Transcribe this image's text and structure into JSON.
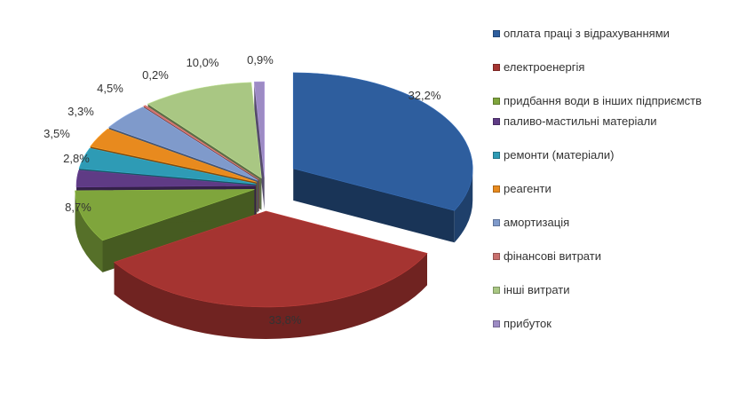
{
  "chart_data": {
    "type": "pie",
    "style": "3d-exploded",
    "title": "",
    "legend_position": "right",
    "slices": [
      {
        "label": "оплата праці з відрахуваннями",
        "value": 32.2,
        "value_label": "32,2%",
        "color": "#2E5E9E"
      },
      {
        "label": "електроенергія",
        "value": 33.8,
        "value_label": "33,8%",
        "color": "#A53431"
      },
      {
        "label": "придбання води в інших підприємств",
        "value": 8.7,
        "value_label": "8,7%",
        "color": "#7FA53C"
      },
      {
        "label": "паливо-мастильні матеріали",
        "value": 2.8,
        "value_label": "2,8%",
        "color": "#5F3B85"
      },
      {
        "label": "ремонти (матеріали)",
        "value": 3.5,
        "value_label": "3,5%",
        "color": "#2E9BB5"
      },
      {
        "label": "реагенти",
        "value": 3.3,
        "value_label": "3,3%",
        "color": "#E88A1E"
      },
      {
        "label": "амортизація",
        "value": 4.5,
        "value_label": "4,5%",
        "color": "#7F9ACB"
      },
      {
        "label": "фінансові витрати",
        "value": 0.2,
        "value_label": "0,2%",
        "color": "#C9706E"
      },
      {
        "label": "інші витрати",
        "value": 10.0,
        "value_label": "10,0%",
        "color": "#A9C783"
      },
      {
        "label": "прибуток",
        "value": 0.9,
        "value_label": "0,9%",
        "color": "#9D8BC4"
      }
    ]
  }
}
